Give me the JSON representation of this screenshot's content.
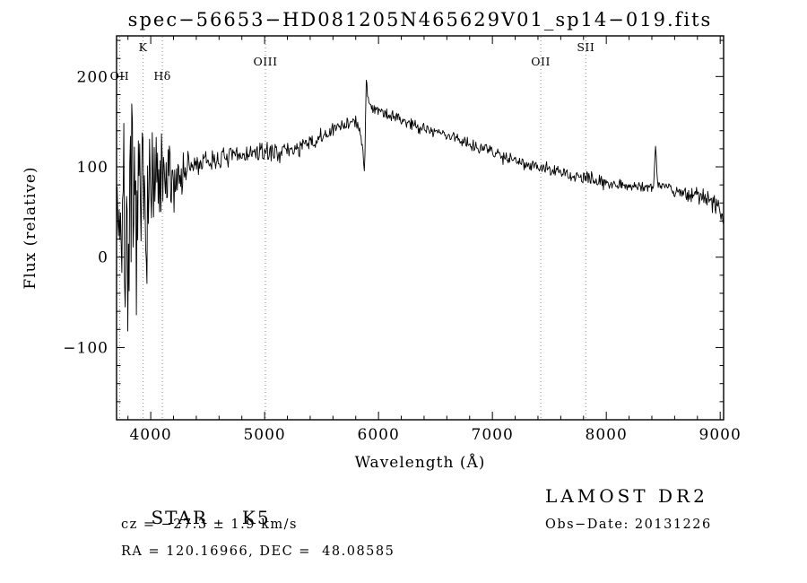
{
  "title": "spec−56653−HD081205N465629V01_sp14−019.fits",
  "chart_data": {
    "type": "line",
    "title": "spec−56653−HD081205N465629V01_sp14−019.fits",
    "xlabel": "Wavelength (Å)",
    "ylabel": "Flux (relative)",
    "xlim": [
      3700,
      9030
    ],
    "ylim": [
      -180,
      245
    ],
    "x_ticks": [
      4000,
      5000,
      6000,
      7000,
      8000,
      9000
    ],
    "y_ticks": [
      -100,
      0,
      100,
      200
    ],
    "x_minor_step": 200,
    "y_minor_step": 20,
    "grid": false,
    "legend": "none",
    "line_color": "#000000",
    "marker_line_color": "#888888",
    "line_markers": [
      {
        "label": "OII",
        "wavelength": 3727,
        "row": 2
      },
      {
        "label": "K",
        "wavelength": 3933,
        "row": 0
      },
      {
        "label": "Hδ",
        "wavelength": 4102,
        "row": 2
      },
      {
        "label": "OIII",
        "wavelength": 5007,
        "row": 1
      },
      {
        "label": "OII",
        "wavelength": 7425,
        "row": 1
      },
      {
        "label": "SII",
        "wavelength": 7820,
        "row": 0
      }
    ],
    "noise_seed": 7,
    "n_points": 920,
    "series": [
      {
        "name": "spectrum",
        "color": "#000000",
        "anchors": [
          [
            3700,
            70,
            100
          ],
          [
            3760,
            30,
            130
          ],
          [
            3830,
            20,
            140
          ],
          [
            3900,
            50,
            110
          ],
          [
            3980,
            70,
            85
          ],
          [
            4060,
            75,
            70
          ],
          [
            4140,
            80,
            55
          ],
          [
            4220,
            88,
            40
          ],
          [
            4300,
            96,
            25
          ],
          [
            4400,
            102,
            16
          ],
          [
            4550,
            107,
            13
          ],
          [
            4700,
            111,
            12
          ],
          [
            4850,
            114,
            12
          ],
          [
            5000,
            116,
            11
          ],
          [
            5150,
            117,
            11
          ],
          [
            5300,
            121,
            11
          ],
          [
            5450,
            128,
            11
          ],
          [
            5600,
            140,
            10
          ],
          [
            5720,
            149,
            10
          ],
          [
            5800,
            150,
            9
          ],
          [
            5855,
            128,
            7
          ],
          [
            5878,
            96,
            4
          ],
          [
            5893,
            203,
            3
          ],
          [
            5908,
            172,
            5
          ],
          [
            5960,
            166,
            8
          ],
          [
            6050,
            160,
            9
          ],
          [
            6200,
            152,
            9
          ],
          [
            6350,
            145,
            8
          ],
          [
            6500,
            139,
            8
          ],
          [
            6650,
            133,
            8
          ],
          [
            6800,
            126,
            8
          ],
          [
            6950,
            119,
            8
          ],
          [
            7100,
            112,
            8
          ],
          [
            7250,
            106,
            8
          ],
          [
            7400,
            100,
            8
          ],
          [
            7550,
            95,
            8
          ],
          [
            7700,
            90,
            8
          ],
          [
            7850,
            86,
            8
          ],
          [
            8000,
            83,
            7
          ],
          [
            8150,
            80,
            7
          ],
          [
            8300,
            78,
            7
          ],
          [
            8415,
            78,
            5
          ],
          [
            8432,
            124,
            3
          ],
          [
            8450,
            82,
            5
          ],
          [
            8550,
            78,
            8
          ],
          [
            8650,
            70,
            11
          ],
          [
            8780,
            70,
            11
          ],
          [
            8900,
            62,
            12
          ],
          [
            8990,
            58,
            13
          ],
          [
            9030,
            35,
            8
          ]
        ]
      }
    ]
  },
  "footer": {
    "left": {
      "category": "STAR",
      "subclass": "K5",
      "cz_line": "cz = −27.3 ± 1.9 km/s",
      "coord_line": "RA = 120.16966, DEC =  48.08585"
    },
    "right": {
      "survey": "LAMOST DR2",
      "obs_date": "Obs−Date: 20131226"
    }
  }
}
